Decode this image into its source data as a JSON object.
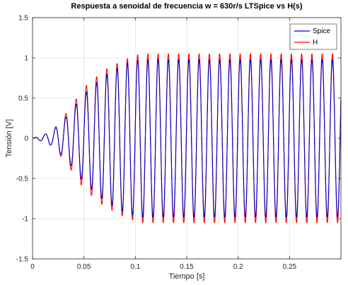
{
  "chart_data": {
    "type": "line",
    "title": "Respuesta a senoidal de frecuencia w = 630r/s LTSpice vs H(s)",
    "xlabel": "Tiempo [s]",
    "ylabel": "Tensión [V]",
    "xlim": [
      0,
      0.3
    ],
    "ylim": [
      -1.5,
      1.5
    ],
    "xticks": [
      0,
      0.05,
      0.1,
      0.15,
      0.2,
      0.25
    ],
    "xtick_labels": [
      "0",
      "0.05",
      "0.1",
      "0.15",
      "0.2",
      "0.25"
    ],
    "yticks": [
      -1.5,
      -1,
      -0.5,
      0,
      0.5,
      1,
      1.5
    ],
    "ytick_labels": [
      "-1.5",
      "-1",
      "-0.5",
      "0",
      "0.5",
      "1",
      "1.5"
    ],
    "grid": true,
    "legend_position": "top-right",
    "signal": {
      "angular_frequency_rad_s": 630,
      "envelope_start_amplitude": 0.0,
      "envelope_settle_time_s": 0.105
    },
    "series": [
      {
        "name": "Spice",
        "color": "#0000cc",
        "steady_amplitude": 0.98,
        "peak_envelope": [
          [
            0.0,
            0.0
          ],
          [
            0.012,
            0.05
          ],
          [
            0.02,
            0.1
          ],
          [
            0.035,
            0.3
          ],
          [
            0.05,
            0.55
          ],
          [
            0.07,
            0.78
          ],
          [
            0.09,
            0.93
          ],
          [
            0.105,
            0.98
          ],
          [
            0.3,
            0.98
          ]
        ]
      },
      {
        "name": "H",
        "color": "#ff0000",
        "steady_amplitude": 1.05,
        "peak_envelope": [
          [
            0.0,
            0.0
          ],
          [
            0.012,
            0.05
          ],
          [
            0.02,
            0.1
          ],
          [
            0.035,
            0.35
          ],
          [
            0.05,
            0.63
          ],
          [
            0.07,
            0.85
          ],
          [
            0.09,
            0.98
          ],
          [
            0.105,
            1.05
          ],
          [
            0.3,
            1.05
          ]
        ]
      }
    ]
  }
}
